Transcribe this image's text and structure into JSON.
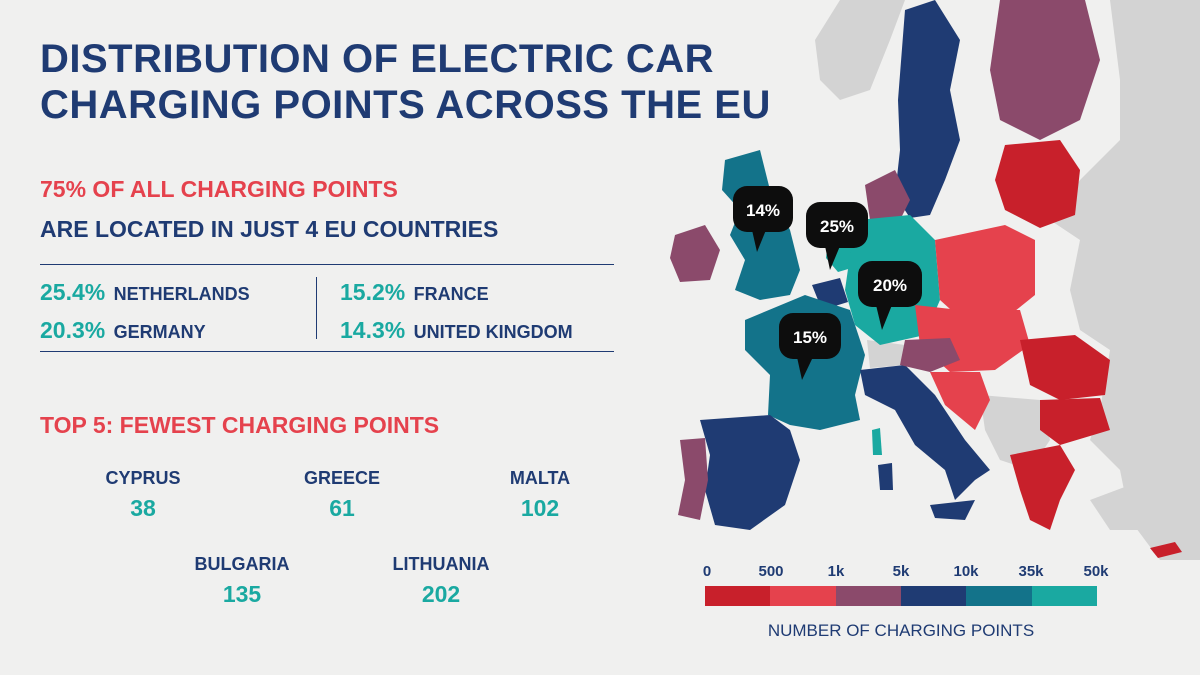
{
  "title_lines": [
    "DISTRIBUTION OF ELECTRIC CAR",
    "CHARGING POINTS ACROSS THE EU"
  ],
  "headline": {
    "line1": "75% OF ALL CHARGING POINTS",
    "line2": "ARE LOCATED IN JUST 4 EU COUNTRIES"
  },
  "top_countries": [
    {
      "pct": "25.4%",
      "country": "NETHERLANDS"
    },
    {
      "pct": "20.3%",
      "country": "GERMANY"
    },
    {
      "pct": "15.2%",
      "country": "FRANCE"
    },
    {
      "pct": "14.3%",
      "country": "UNITED KINGDOM"
    }
  ],
  "fewest": {
    "title": "TOP 5: FEWEST CHARGING POINTS",
    "items": [
      {
        "country": "CYPRUS",
        "value": "38"
      },
      {
        "country": "GREECE",
        "value": "61"
      },
      {
        "country": "MALTA",
        "value": "102"
      },
      {
        "country": "BULGARIA",
        "value": "135"
      },
      {
        "country": "LITHUANIA",
        "value": "202"
      }
    ]
  },
  "map_callouts": [
    {
      "label": "14%",
      "country": "United Kingdom"
    },
    {
      "label": "25%",
      "country": "Netherlands"
    },
    {
      "label": "20%",
      "country": "Germany"
    },
    {
      "label": "15%",
      "country": "France"
    }
  ],
  "legend": {
    "title": "NUMBER OF CHARGING POINTS",
    "ticks": [
      "0",
      "500",
      "1k",
      "5k",
      "10k",
      "35k",
      "50k"
    ],
    "colors": [
      "#c8202b",
      "#e5424d",
      "#8b4a6b",
      "#1f3b73",
      "#13738a",
      "#1aa9a1"
    ]
  },
  "colors": {
    "navy": "#1f3b73",
    "red_accent": "#e5424d",
    "teal_accent": "#1aa9a1",
    "non_eu_land": "#d3d3d3",
    "background": "#f0f0ef"
  }
}
